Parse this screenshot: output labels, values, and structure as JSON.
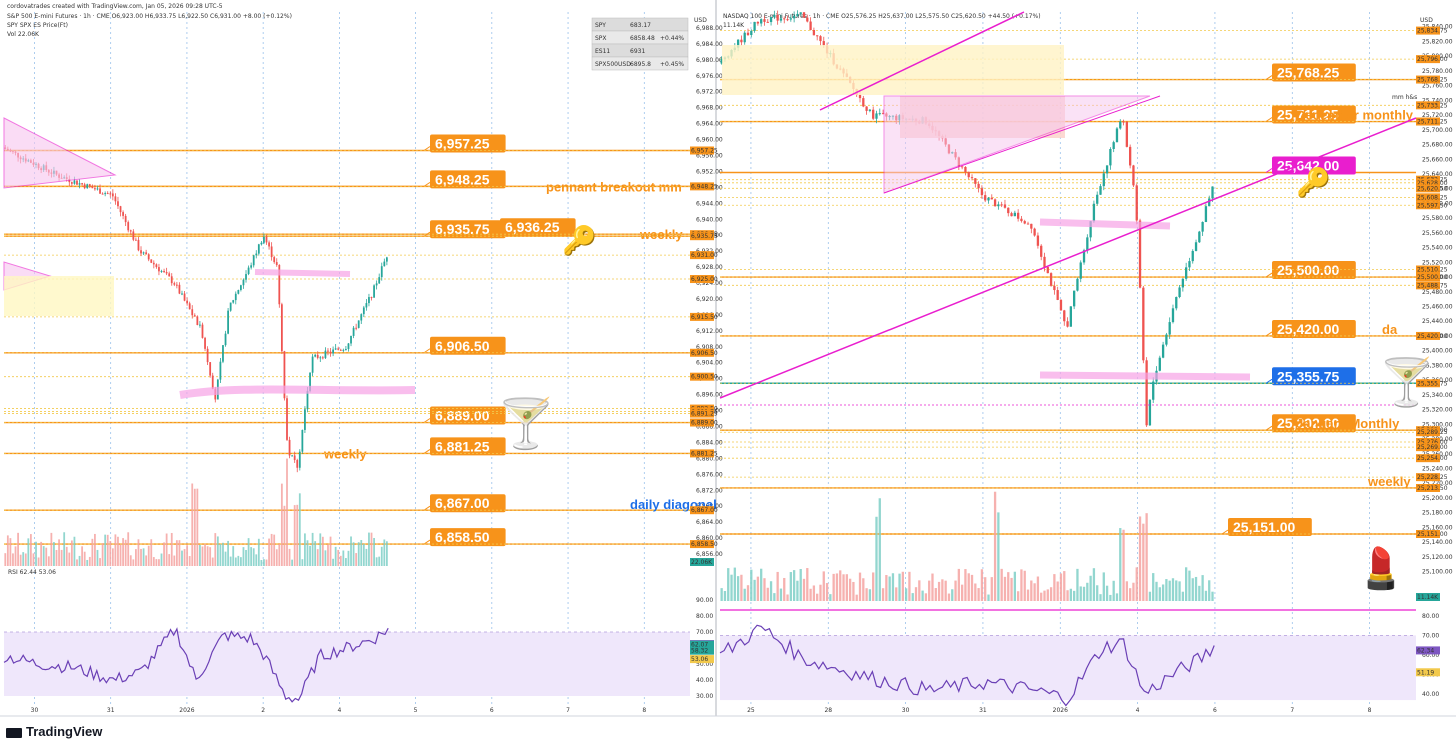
{
  "brand_colors": {
    "up": "#26a69a",
    "down": "#ef5350",
    "level": "#f7931a",
    "pink": "#e91ece",
    "blue": "#1e6fe8"
  },
  "footer": {
    "brand": "TradingView"
  },
  "chart_data": [
    {
      "type": "candlestick",
      "header": "cordovatrades created with TradingView.com, Jan 05, 2026 09:28 UTC-5",
      "title": "S&P 500 E-mini Futures · 1h · CME",
      "ohlc": "O6,923.00 H6,933.75 L6,922.50 C6,931.00 +8.00 (+0.12%)",
      "subtitle": "SPY SPX ES Price(Ft)",
      "volume_label": "Vol 22.06K",
      "axis_unit": "USD",
      "ylim": [
        6853,
        6992
      ],
      "y_ticks": [
        6988,
        6984,
        6980,
        6976,
        6972,
        6968,
        6964,
        6960,
        6956,
        6952,
        6948,
        6944,
        6940,
        6936,
        6932,
        6928,
        6924,
        6920,
        6916,
        6912,
        6908,
        6904,
        6900,
        6896,
        6892,
        6888,
        6884,
        6880,
        6876,
        6872,
        6868,
        6864,
        6860,
        6856
      ],
      "x_ticks": [
        "30",
        "31",
        "2026",
        "2",
        "4",
        "5",
        "6",
        "7",
        "8"
      ],
      "watchlist": [
        {
          "sym": "SPY",
          "price": "683.17",
          "chg": ""
        },
        {
          "sym": "SPX",
          "price": "6858.48",
          "chg": "+0.44%"
        },
        {
          "sym": "ES11",
          "price": "6931",
          "chg": ""
        },
        {
          "sym": "SPX500USD",
          "price": "6895.8",
          "chg": "+0.45%"
        }
      ],
      "levels": [
        {
          "v": 6957.25,
          "label": "6,957.25",
          "tag": true
        },
        {
          "v": 6948.25,
          "label": "6,948.25",
          "tag": true,
          "note": "pennant breakout mm"
        },
        {
          "v": 6936.25,
          "label": "6,936.25",
          "tag": true,
          "note": "weekly"
        },
        {
          "v": 6935.75,
          "label": "6,935.75",
          "tag": true
        },
        {
          "v": 6906.5,
          "label": "6,906.50",
          "tag": true
        },
        {
          "v": 6889.0,
          "label": "6,889.00",
          "tag": true
        },
        {
          "v": 6881.25,
          "label": "6,881.25",
          "tag": true,
          "note": "weekly"
        },
        {
          "v": 6867.0,
          "label": "6,867.00",
          "tag": true,
          "note": "daily diagonal"
        },
        {
          "v": 6858.5,
          "label": "6,858.50",
          "tag": true
        }
      ],
      "axis_badges": [
        "6,957.25",
        "6,948.25",
        "6,936.25",
        "6,935.75",
        "6,931.00",
        "6,925.00",
        "6,915.50",
        "6,906.50",
        "6,900.50",
        "6,892.50",
        "6,891.75",
        "6,891.25",
        "6,889.00",
        "6,881.25",
        "6,867.00",
        "6,858.50",
        "22.06K"
      ],
      "rsi": {
        "label": "RSI 62.44 53.06",
        "ylim": [
          25,
          95
        ],
        "ticks": [
          "90.00",
          "80.00",
          "70.00",
          "60.00",
          "50.00",
          "40.00",
          "30.00"
        ],
        "badges": [
          "62.44",
          "62.07",
          "58.32",
          "53.06"
        ]
      }
    },
    {
      "type": "candlestick",
      "title": "NASDAQ 100 E-mini Futures · 1h · CME",
      "ohlc": "O25,576.25 H25,637.00 L25,575.50 C25,620.50 +44.50 (+0.17%)",
      "volume_label": "11.14K",
      "axis_unit": "USD",
      "ylim": [
        25060,
        25860
      ],
      "y_ticks": [
        25840,
        25820,
        25800,
        25780,
        25760,
        25740,
        25720,
        25700,
        25680,
        25660,
        25640,
        25620,
        25600,
        25580,
        25560,
        25540,
        25520,
        25500,
        25480,
        25460,
        25440,
        25420,
        25400,
        25380,
        25360,
        25340,
        25320,
        25300,
        25280,
        25260,
        25240,
        25220,
        25200,
        25180,
        25160,
        25140,
        25120,
        25100
      ],
      "x_ticks": [
        "25",
        "28",
        "30",
        "31",
        "2026",
        "4",
        "6",
        "7",
        "8"
      ],
      "levels": [
        {
          "v": 25768.25,
          "label": "25,768.25",
          "tag": true
        },
        {
          "v": 25711.25,
          "label": "25,711.25",
          "tag": true,
          "note": "December monthly"
        },
        {
          "v": 25642.0,
          "label": "25,642.00",
          "tag": true,
          "pink": true
        },
        {
          "v": 25500.0,
          "label": "25,500.00",
          "tag": true
        },
        {
          "v": 25420.0,
          "label": "25,420.00",
          "tag": true,
          "note": "da"
        },
        {
          "v": 25355.75,
          "label": "25,355.75",
          "tag": true,
          "blue": true
        },
        {
          "v": 25292.0,
          "label": "25,292.00",
          "tag": true,
          "note": "January Monthly"
        },
        {
          "v": 25213.5,
          "label": "",
          "tag": false,
          "note": "weekly"
        },
        {
          "v": 25151.0,
          "label": "25,151.00",
          "tag": true
        }
      ],
      "mm_label": "mm h&s",
      "axis_badges": [
        "25,834.75",
        "25,796.00",
        "25,768.25",
        "25,733.25",
        "25,711.25",
        "25,632.25",
        "25,628.00",
        "25,620.50",
        "25,608.25",
        "25,597.50",
        "25,510.25",
        "25,500.00",
        "25,488.75",
        "25,420.00",
        "25,355.75",
        "25,292.00",
        "25,289.25",
        "25,276.00",
        "25,269.00",
        "25,254.00",
        "25,228.25",
        "25,213.50",
        "25,151.00",
        "11.14K"
      ],
      "rsi": {
        "label": "",
        "ylim": [
          35,
          85
        ],
        "ticks": [
          "80.00",
          "70.00",
          "60.00",
          "50.00",
          "40.00"
        ],
        "badges": [
          "62.34",
          "51.19"
        ]
      }
    }
  ]
}
